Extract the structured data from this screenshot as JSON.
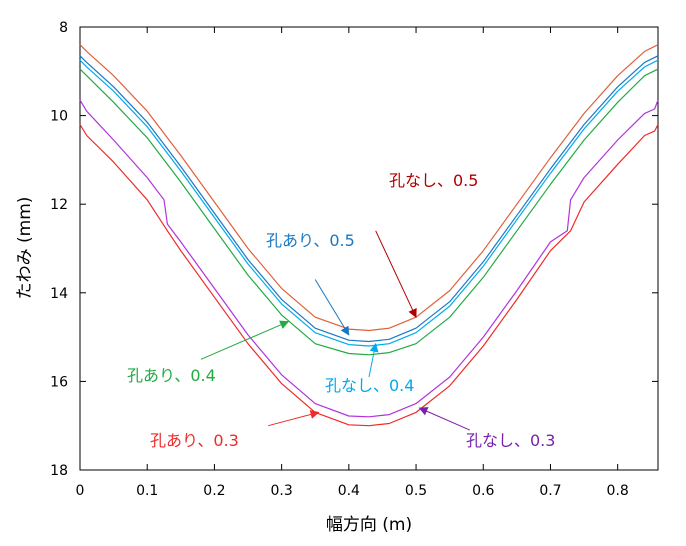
{
  "chart_data": {
    "type": "line",
    "xlabel": "幅方向 (m)",
    "ylabel": "たわみ (mm)",
    "xlim": [
      0,
      0.86
    ],
    "ylim": [
      8,
      18
    ],
    "y_inverted": true,
    "x_ticks": [
      "0",
      "0.1",
      "0.2",
      "0.3",
      "0.4",
      "0.5",
      "0.6",
      "0.7",
      "0.8"
    ],
    "y_ticks": [
      "8",
      "10",
      "12",
      "14",
      "16",
      "18"
    ],
    "grid": false,
    "series": [
      {
        "name": "孔なし、0.5",
        "color": "#e0603a",
        "x": [
          0,
          0.01,
          0.05,
          0.1,
          0.15,
          0.2,
          0.25,
          0.3,
          0.35,
          0.4,
          0.43,
          0.46,
          0.5,
          0.55,
          0.6,
          0.65,
          0.7,
          0.75,
          0.8,
          0.84,
          0.86
        ],
        "y": [
          8.4,
          8.55,
          9.1,
          9.9,
          10.9,
          11.95,
          13.0,
          13.9,
          14.55,
          14.82,
          14.85,
          14.8,
          14.55,
          13.95,
          13.05,
          12.0,
          10.95,
          9.95,
          9.1,
          8.55,
          8.4
        ]
      },
      {
        "name": "孔あり、0.5",
        "color": "#1a78c2",
        "x": [
          0,
          0.01,
          0.05,
          0.1,
          0.15,
          0.2,
          0.25,
          0.3,
          0.35,
          0.4,
          0.43,
          0.46,
          0.5,
          0.55,
          0.6,
          0.65,
          0.7,
          0.75,
          0.8,
          0.84,
          0.86
        ],
        "y": [
          8.65,
          8.8,
          9.35,
          10.15,
          11.15,
          12.2,
          13.25,
          14.15,
          14.8,
          15.07,
          15.1,
          15.05,
          14.8,
          14.2,
          13.3,
          12.25,
          11.2,
          10.2,
          9.35,
          8.8,
          8.65
        ]
      },
      {
        "name": "孔なし、0.4",
        "color": "#00aaee",
        "x": [
          0,
          0.01,
          0.05,
          0.1,
          0.15,
          0.2,
          0.25,
          0.3,
          0.35,
          0.4,
          0.43,
          0.46,
          0.5,
          0.55,
          0.6,
          0.65,
          0.7,
          0.75,
          0.8,
          0.84,
          0.86
        ],
        "y": [
          8.75,
          8.9,
          9.45,
          10.25,
          11.25,
          12.3,
          13.35,
          14.25,
          14.9,
          15.17,
          15.2,
          15.15,
          14.9,
          14.3,
          13.4,
          12.35,
          11.3,
          10.3,
          9.45,
          8.9,
          8.75
        ]
      },
      {
        "name": "孔あり、0.4",
        "color": "#22aa44",
        "x": [
          0,
          0.01,
          0.05,
          0.1,
          0.15,
          0.2,
          0.25,
          0.3,
          0.35,
          0.4,
          0.43,
          0.46,
          0.5,
          0.55,
          0.6,
          0.65,
          0.7,
          0.75,
          0.8,
          0.84,
          0.86
        ],
        "y": [
          8.95,
          9.1,
          9.7,
          10.5,
          11.5,
          12.55,
          13.6,
          14.5,
          15.15,
          15.37,
          15.4,
          15.35,
          15.15,
          14.55,
          13.65,
          12.6,
          11.55,
          10.55,
          9.7,
          9.1,
          8.95
        ]
      },
      {
        "name": "孔なし、0.3",
        "color": "#b233dd",
        "x": [
          0,
          0.01,
          0.05,
          0.1,
          0.125,
          0.13,
          0.15,
          0.2,
          0.25,
          0.3,
          0.35,
          0.4,
          0.43,
          0.46,
          0.5,
          0.55,
          0.6,
          0.65,
          0.7,
          0.725,
          0.73,
          0.75,
          0.8,
          0.84,
          0.855,
          0.86
        ],
        "y": [
          9.65,
          9.9,
          10.55,
          11.4,
          11.9,
          12.45,
          12.85,
          13.9,
          14.95,
          15.85,
          16.5,
          16.78,
          16.8,
          16.75,
          16.5,
          15.9,
          15.0,
          13.95,
          12.85,
          12.6,
          11.9,
          11.4,
          10.55,
          9.95,
          9.85,
          9.65
        ]
      },
      {
        "name": "孔あり、0.3",
        "color": "#ee2a2a",
        "x": [
          0,
          0.01,
          0.05,
          0.1,
          0.13,
          0.15,
          0.2,
          0.25,
          0.3,
          0.35,
          0.4,
          0.43,
          0.46,
          0.5,
          0.55,
          0.6,
          0.65,
          0.7,
          0.73,
          0.75,
          0.8,
          0.84,
          0.855,
          0.86
        ],
        "y": [
          10.2,
          10.45,
          11.05,
          11.9,
          12.6,
          13.05,
          14.1,
          15.15,
          16.05,
          16.7,
          16.98,
          17.0,
          16.95,
          16.7,
          16.1,
          15.2,
          14.15,
          13.05,
          12.6,
          11.95,
          11.1,
          10.45,
          10.35,
          10.2
        ]
      }
    ],
    "annotations": [
      {
        "text": "孔なし、0.5",
        "color": "#b00000",
        "arrow_from": [
          0.44,
          12.6
        ],
        "arrow_to": [
          0.5,
          14.55
        ]
      },
      {
        "text": "孔あり、0.5",
        "color": "#1a78c2",
        "arrow_from": [
          0.35,
          13.7
        ],
        "arrow_to": [
          0.4,
          14.95
        ]
      },
      {
        "text": "孔あり、0.4",
        "color": "#22aa44",
        "arrow_from": [
          0.18,
          15.5
        ],
        "arrow_to": [
          0.31,
          14.65
        ]
      },
      {
        "text": "孔なし、0.4",
        "color": "#00aaee",
        "arrow_from": [
          0.43,
          15.9
        ],
        "arrow_to": [
          0.44,
          15.15
        ]
      },
      {
        "text": "孔なし、0.3",
        "color": "#7722aa",
        "arrow_from": [
          0.58,
          17.1
        ],
        "arrow_to": [
          0.505,
          16.6
        ]
      },
      {
        "text": "孔あり、0.3",
        "color": "#ee2a2a",
        "arrow_from": [
          0.28,
          17.0
        ],
        "arrow_to": [
          0.355,
          16.7
        ]
      }
    ]
  }
}
